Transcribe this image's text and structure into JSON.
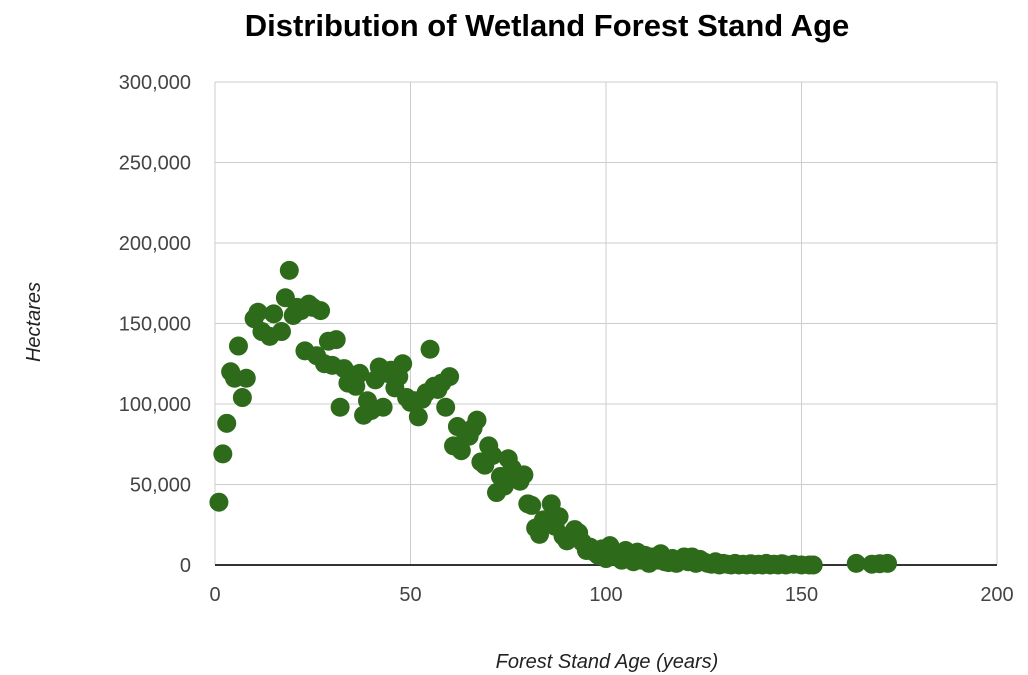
{
  "chart_data": {
    "type": "scatter",
    "title": "Distribution of Wetland Forest Stand Age",
    "xlabel": "Forest Stand Age (years)",
    "ylabel": "Hectares",
    "xlim": [
      0,
      200
    ],
    "ylim": [
      0,
      300000
    ],
    "x_ticks": [
      "0",
      "50",
      "100",
      "150",
      "200"
    ],
    "y_ticks": [
      "0",
      "50,000",
      "100,000",
      "150,000",
      "200,000",
      "250,000",
      "300,000"
    ],
    "grid": true,
    "legend": "none",
    "marker_color": "#2d6b1a",
    "series": [
      {
        "points": [
          [
            1,
            39000
          ],
          [
            2,
            69000
          ],
          [
            3,
            88000
          ],
          [
            4,
            120000
          ],
          [
            5,
            116000
          ],
          [
            6,
            136000
          ],
          [
            7,
            104000
          ],
          [
            8,
            116000
          ],
          [
            10,
            153000
          ],
          [
            11,
            157000
          ],
          [
            12,
            145000
          ],
          [
            14,
            142000
          ],
          [
            15,
            156000
          ],
          [
            17,
            145000
          ],
          [
            18,
            166000
          ],
          [
            19,
            183000
          ],
          [
            20,
            155000
          ],
          [
            21,
            160000
          ],
          [
            22,
            158000
          ],
          [
            23,
            133000
          ],
          [
            24,
            162000
          ],
          [
            25,
            160000
          ],
          [
            26,
            130000
          ],
          [
            27,
            158000
          ],
          [
            28,
            125000
          ],
          [
            29,
            139000
          ],
          [
            30,
            124000
          ],
          [
            31,
            140000
          ],
          [
            32,
            98000
          ],
          [
            33,
            122000
          ],
          [
            34,
            113000
          ],
          [
            35,
            118000
          ],
          [
            36,
            111000
          ],
          [
            37,
            119000
          ],
          [
            38,
            93000
          ],
          [
            39,
            102000
          ],
          [
            40,
            96000
          ],
          [
            41,
            115000
          ],
          [
            42,
            123000
          ],
          [
            43,
            98000
          ],
          [
            44,
            119000
          ],
          [
            45,
            121000
          ],
          [
            46,
            110000
          ],
          [
            47,
            117000
          ],
          [
            48,
            125000
          ],
          [
            49,
            104000
          ],
          [
            50,
            101000
          ],
          [
            51,
            102000
          ],
          [
            52,
            92000
          ],
          [
            53,
            103000
          ],
          [
            54,
            107000
          ],
          [
            55,
            134000
          ],
          [
            56,
            111000
          ],
          [
            57,
            109000
          ],
          [
            58,
            113000
          ],
          [
            59,
            98000
          ],
          [
            60,
            117000
          ],
          [
            61,
            74000
          ],
          [
            62,
            86000
          ],
          [
            63,
            71000
          ],
          [
            64,
            82000
          ],
          [
            65,
            80000
          ],
          [
            66,
            85000
          ],
          [
            67,
            90000
          ],
          [
            68,
            64000
          ],
          [
            69,
            62000
          ],
          [
            70,
            74000
          ],
          [
            71,
            68000
          ],
          [
            72,
            45000
          ],
          [
            73,
            55000
          ],
          [
            74,
            49000
          ],
          [
            75,
            66000
          ],
          [
            76,
            60000
          ],
          [
            77,
            54000
          ],
          [
            78,
            52000
          ],
          [
            79,
            56000
          ],
          [
            80,
            38000
          ],
          [
            81,
            37000
          ],
          [
            82,
            23000
          ],
          [
            83,
            19000
          ],
          [
            84,
            28000
          ],
          [
            85,
            27000
          ],
          [
            86,
            38000
          ],
          [
            87,
            24000
          ],
          [
            88,
            30000
          ],
          [
            89,
            18000
          ],
          [
            90,
            15000
          ],
          [
            91,
            17000
          ],
          [
            92,
            22000
          ],
          [
            93,
            20000
          ],
          [
            94,
            14000
          ],
          [
            95,
            9000
          ],
          [
            96,
            11000
          ],
          [
            97,
            8000
          ],
          [
            98,
            6000
          ],
          [
            99,
            10000
          ],
          [
            100,
            4000
          ],
          [
            101,
            12000
          ],
          [
            102,
            7000
          ],
          [
            103,
            5000
          ],
          [
            104,
            3000
          ],
          [
            105,
            9000
          ],
          [
            106,
            4000
          ],
          [
            107,
            2000
          ],
          [
            108,
            8000
          ],
          [
            109,
            3000
          ],
          [
            110,
            6000
          ],
          [
            111,
            1000
          ],
          [
            112,
            5000
          ],
          [
            113,
            3000
          ],
          [
            114,
            7000
          ],
          [
            115,
            2000
          ],
          [
            116,
            1500
          ],
          [
            117,
            4000
          ],
          [
            118,
            1000
          ],
          [
            119,
            3000
          ],
          [
            120,
            5000
          ],
          [
            121,
            2000
          ],
          [
            122,
            5000
          ],
          [
            123,
            1000
          ],
          [
            124,
            3500
          ],
          [
            125,
            2000
          ],
          [
            126,
            1000
          ],
          [
            127,
            500
          ],
          [
            128,
            2000
          ],
          [
            129,
            0
          ],
          [
            130,
            1000
          ],
          [
            131,
            500
          ],
          [
            132,
            0
          ],
          [
            133,
            1000
          ],
          [
            134,
            0
          ],
          [
            135,
            500
          ],
          [
            136,
            0
          ],
          [
            137,
            800
          ],
          [
            138,
            0
          ],
          [
            139,
            500
          ],
          [
            140,
            0
          ],
          [
            141,
            1000
          ],
          [
            142,
            0
          ],
          [
            143,
            500
          ],
          [
            144,
            0
          ],
          [
            145,
            800
          ],
          [
            146,
            0
          ],
          [
            148,
            500
          ],
          [
            150,
            0
          ],
          [
            152,
            0
          ],
          [
            153,
            0
          ],
          [
            164,
            1000
          ],
          [
            168,
            500
          ],
          [
            170,
            800
          ],
          [
            172,
            1000
          ]
        ]
      }
    ]
  }
}
